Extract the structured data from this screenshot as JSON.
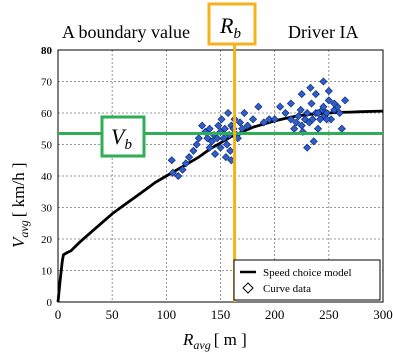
{
  "chart_data": {
    "type": "scatter",
    "title": "Driver IA",
    "xlabel_main": "R",
    "xlabel_sub": "avg",
    "xlabel_unit": "[ m ]",
    "ylabel_main": "V",
    "ylabel_sub": "avg",
    "ylabel_unit": "[ km/h ]",
    "xlim": [
      0,
      300
    ],
    "ylim": [
      0,
      80
    ],
    "x_ticks": [
      0,
      50,
      100,
      150,
      200,
      250,
      300
    ],
    "y_ticks": [
      0,
      10,
      20,
      30,
      40,
      50,
      60,
      70,
      80
    ],
    "grid": true,
    "legend_position": "bottom-right",
    "colors": {
      "model_line": "#000000",
      "points": "#2e5ec7",
      "boundary_v": "#2eaf55",
      "boundary_r": "#f5b31a",
      "grid": "#777777"
    },
    "series": [
      {
        "name": "Speed choice model",
        "kind": "line",
        "points": [
          [
            0,
            0
          ],
          [
            2,
            7
          ],
          [
            4,
            13
          ],
          [
            5,
            15
          ],
          [
            8,
            15.6
          ],
          [
            12,
            16.3
          ],
          [
            20,
            19
          ],
          [
            30,
            22
          ],
          [
            40,
            25
          ],
          [
            50,
            28
          ],
          [
            60,
            30.5
          ],
          [
            70,
            33
          ],
          [
            80,
            35.5
          ],
          [
            90,
            38
          ],
          [
            100,
            40
          ],
          [
            110,
            42
          ],
          [
            120,
            44
          ],
          [
            130,
            46
          ],
          [
            140,
            48.5
          ],
          [
            150,
            50.5
          ],
          [
            160,
            52.5
          ],
          [
            170,
            54
          ],
          [
            180,
            55.5
          ],
          [
            190,
            56.5
          ],
          [
            200,
            57.5
          ],
          [
            210,
            58.3
          ],
          [
            220,
            59
          ],
          [
            230,
            59.5
          ],
          [
            240,
            59.8
          ],
          [
            250,
            60
          ],
          [
            260,
            60.2
          ],
          [
            270,
            60.3
          ],
          [
            280,
            60.4
          ],
          [
            290,
            60.5
          ],
          [
            300,
            60.6
          ]
        ]
      },
      {
        "name": "Curve data",
        "kind": "scatter",
        "points": [
          [
            105,
            45
          ],
          [
            106,
            41
          ],
          [
            111,
            40
          ],
          [
            115,
            42
          ],
          [
            118,
            44
          ],
          [
            121,
            46
          ],
          [
            125,
            48
          ],
          [
            128,
            50
          ],
          [
            130,
            52
          ],
          [
            133,
            56
          ],
          [
            136,
            54
          ],
          [
            138,
            52
          ],
          [
            140,
            55
          ],
          [
            140,
            49
          ],
          [
            142,
            51
          ],
          [
            144,
            53
          ],
          [
            145,
            47
          ],
          [
            147,
            52
          ],
          [
            148,
            56
          ],
          [
            150,
            54
          ],
          [
            150,
            49
          ],
          [
            151,
            58
          ],
          [
            153,
            52
          ],
          [
            154,
            55
          ],
          [
            155,
            46
          ],
          [
            156,
            50
          ],
          [
            157,
            60
          ],
          [
            158,
            53
          ],
          [
            159,
            48
          ],
          [
            160,
            45
          ],
          [
            160,
            56
          ],
          [
            162,
            55
          ],
          [
            163,
            58
          ],
          [
            165,
            53
          ],
          [
            166,
            52
          ],
          [
            168,
            57
          ],
          [
            170,
            55
          ],
          [
            172,
            60
          ],
          [
            175,
            56
          ],
          [
            180,
            58
          ],
          [
            185,
            62
          ],
          [
            190,
            57
          ],
          [
            195,
            58
          ],
          [
            200,
            58
          ],
          [
            205,
            62
          ],
          [
            210,
            60
          ],
          [
            215,
            58
          ],
          [
            218,
            55
          ],
          [
            220,
            57
          ],
          [
            222,
            59
          ],
          [
            224,
            61
          ],
          [
            225,
            56
          ],
          [
            226,
            54
          ],
          [
            228,
            58
          ],
          [
            230,
            60
          ],
          [
            230,
            49
          ],
          [
            232,
            57
          ],
          [
            234,
            63
          ],
          [
            235,
            58
          ],
          [
            236,
            51
          ],
          [
            238,
            60
          ],
          [
            240,
            60
          ],
          [
            240,
            55
          ],
          [
            242,
            58
          ],
          [
            244,
            61
          ],
          [
            245,
            62
          ],
          [
            246,
            59
          ],
          [
            248,
            60
          ],
          [
            250,
            64
          ],
          [
            252,
            58
          ],
          [
            255,
            61
          ],
          [
            258,
            62
          ],
          [
            260,
            60
          ],
          [
            262,
            55
          ],
          [
            265,
            64
          ],
          [
            215,
            63
          ],
          [
            225,
            66
          ],
          [
            245,
            70
          ],
          [
            250,
            67
          ],
          [
            238,
            66
          ],
          [
            255,
            63
          ],
          [
            233,
            68
          ],
          [
            248,
            58
          ]
        ]
      }
    ],
    "annotations": {
      "boundary_label": "A boundary value",
      "vb_main": "V",
      "vb_sub": "b",
      "vb_value": 53.5,
      "rb_main": "R",
      "rb_sub": "b",
      "rb_value": 163
    }
  }
}
